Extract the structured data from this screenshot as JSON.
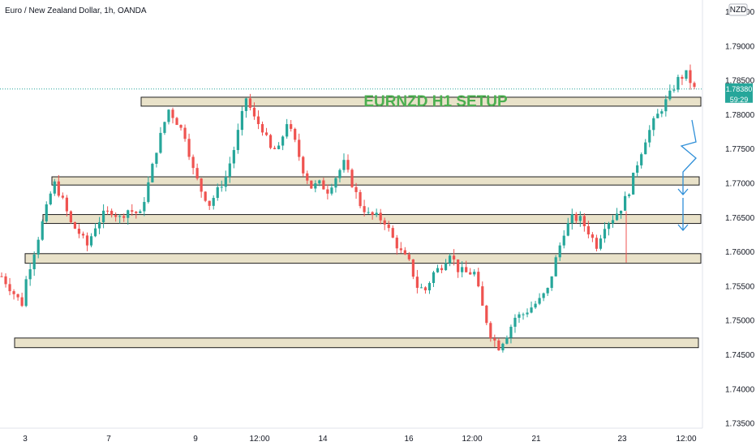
{
  "symbol_title": "Euro / New Zealand Dollar, 1h, OANDA",
  "currency_badge": "NZD",
  "setup_label": "EURNZD H1 SETUP",
  "price_tag": {
    "price": "1.78380",
    "countdown": "59:29"
  },
  "colors": {
    "up": "#26a69a",
    "down": "#ef5350",
    "zone_fill": "#e9e2c9",
    "label": "#4caf50",
    "arrow": "#2f8fd8",
    "price_tag": "#26a69a"
  },
  "chart_data": {
    "type": "candlestick",
    "title": "Euro / New Zealand Dollar, 1h, OANDA",
    "xlabel": "",
    "ylabel": "",
    "ylim": [
      1.7315,
      1.7905
    ],
    "y_ticks": [
      1.735,
      1.74,
      1.745,
      1.75,
      1.755,
      1.76,
      1.765,
      1.77,
      1.775,
      1.78,
      1.785,
      1.79,
      1.795
    ],
    "y_tick_labels": [
      "1.73500",
      "1.74000",
      "1.74500",
      "1.75000",
      "1.75500",
      "1.76000",
      "1.76500",
      "1.77000",
      "1.77500",
      "1.78000",
      "1.78500",
      "1.79000",
      "1.79500"
    ],
    "x_tick_labels": [
      "3",
      "7",
      "9",
      "12:00",
      "14",
      "16",
      "12:00",
      "21",
      "23",
      "12:00"
    ],
    "last_price": 1.7838,
    "support_resistance_zones": [
      {
        "low": 1.7813,
        "high": 1.7826
      },
      {
        "low": 1.7698,
        "high": 1.771
      },
      {
        "low": 1.7642,
        "high": 1.7655
      },
      {
        "low": 1.7584,
        "high": 1.7598
      },
      {
        "low": 1.7461,
        "high": 1.7475
      }
    ],
    "path_points": [
      [
        0,
        1.7565
      ],
      [
        3,
        1.754
      ],
      [
        5,
        1.7525
      ],
      [
        6,
        1.756
      ],
      [
        9,
        1.7622
      ],
      [
        12,
        1.7685
      ],
      [
        13,
        1.77
      ],
      [
        15,
        1.7675
      ],
      [
        17,
        1.7642
      ],
      [
        19,
        1.7628
      ],
      [
        21,
        1.761
      ],
      [
        23,
        1.7638
      ],
      [
        25,
        1.7655
      ],
      [
        27,
        1.766
      ],
      [
        29,
        1.765
      ],
      [
        31,
        1.7662
      ],
      [
        34,
        1.7655
      ],
      [
        36,
        1.77
      ],
      [
        38,
        1.775
      ],
      [
        40,
        1.779
      ],
      [
        41,
        1.7808
      ],
      [
        43,
        1.779
      ],
      [
        45,
        1.777
      ],
      [
        47,
        1.772
      ],
      [
        49,
        1.769
      ],
      [
        51,
        1.767
      ],
      [
        53,
        1.769
      ],
      [
        55,
        1.771
      ],
      [
        57,
        1.775
      ],
      [
        59,
        1.78
      ],
      [
        60,
        1.7825
      ],
      [
        62,
        1.7795
      ],
      [
        64,
        1.778
      ],
      [
        66,
        1.775
      ],
      [
        68,
        1.775
      ],
      [
        70,
        1.779
      ],
      [
        72,
        1.776
      ],
      [
        74,
        1.772
      ],
      [
        76,
        1.7695
      ],
      [
        78,
        1.77
      ],
      [
        80,
        1.769
      ],
      [
        82,
        1.771
      ],
      [
        84,
        1.773
      ],
      [
        86,
        1.77
      ],
      [
        88,
        1.767
      ],
      [
        90,
        1.7655
      ],
      [
        92,
        1.7652
      ],
      [
        94,
        1.7645
      ],
      [
        96,
        1.762
      ],
      [
        98,
        1.76
      ],
      [
        100,
        1.7585
      ],
      [
        102,
        1.755
      ],
      [
        104,
        1.7545
      ],
      [
        106,
        1.757
      ],
      [
        108,
        1.758
      ],
      [
        110,
        1.76
      ],
      [
        112,
        1.7575
      ],
      [
        114,
        1.757
      ],
      [
        116,
        1.757
      ],
      [
        118,
        1.752
      ],
      [
        120,
        1.748
      ],
      [
        122,
        1.7462
      ],
      [
        124,
        1.748
      ],
      [
        126,
        1.7505
      ],
      [
        128,
        1.751
      ],
      [
        130,
        1.752
      ],
      [
        132,
        1.753
      ],
      [
        134,
        1.7545
      ],
      [
        136,
        1.759
      ],
      [
        138,
        1.763
      ],
      [
        140,
        1.765
      ],
      [
        142,
        1.7648
      ],
      [
        144,
        1.763
      ],
      [
        146,
        1.761
      ],
      [
        148,
        1.764
      ],
      [
        150,
        1.765
      ],
      [
        152,
        1.7665
      ],
      [
        154,
        1.769
      ],
      [
        156,
        1.773
      ],
      [
        158,
        1.7765
      ],
      [
        160,
        1.779
      ],
      [
        162,
        1.781
      ],
      [
        164,
        1.783
      ],
      [
        166,
        1.7852
      ],
      [
        168,
        1.786
      ],
      [
        170,
        1.7838
      ]
    ]
  }
}
